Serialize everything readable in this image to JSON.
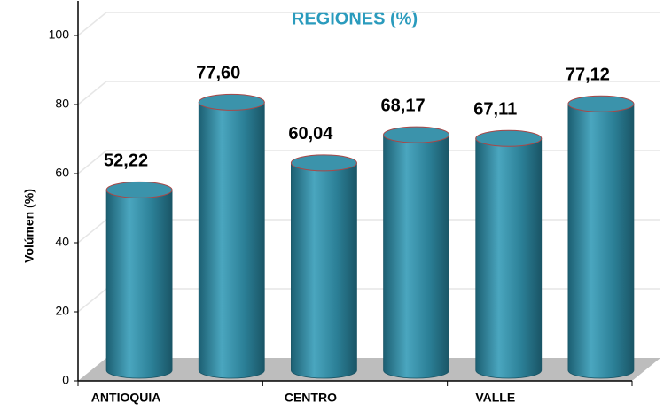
{
  "chart_data": {
    "type": "bar3d",
    "title": "REGIONES (%)",
    "y_label": "Volúmen (%)",
    "categories": [
      "ANTIOQUIA",
      null,
      "CENTRO",
      null,
      "VALLE",
      null
    ],
    "values": [
      52.22,
      77.6,
      60.04,
      68.17,
      67.11,
      77.12
    ],
    "value_labels": [
      "52,22",
      "77,60",
      "60,04",
      "68,17",
      "67,11",
      "77,12"
    ],
    "color": "#2b7f96",
    "ylim": [
      0,
      110
    ],
    "yticks": [
      0,
      20,
      40,
      60,
      80,
      100
    ],
    "grid": true
  }
}
